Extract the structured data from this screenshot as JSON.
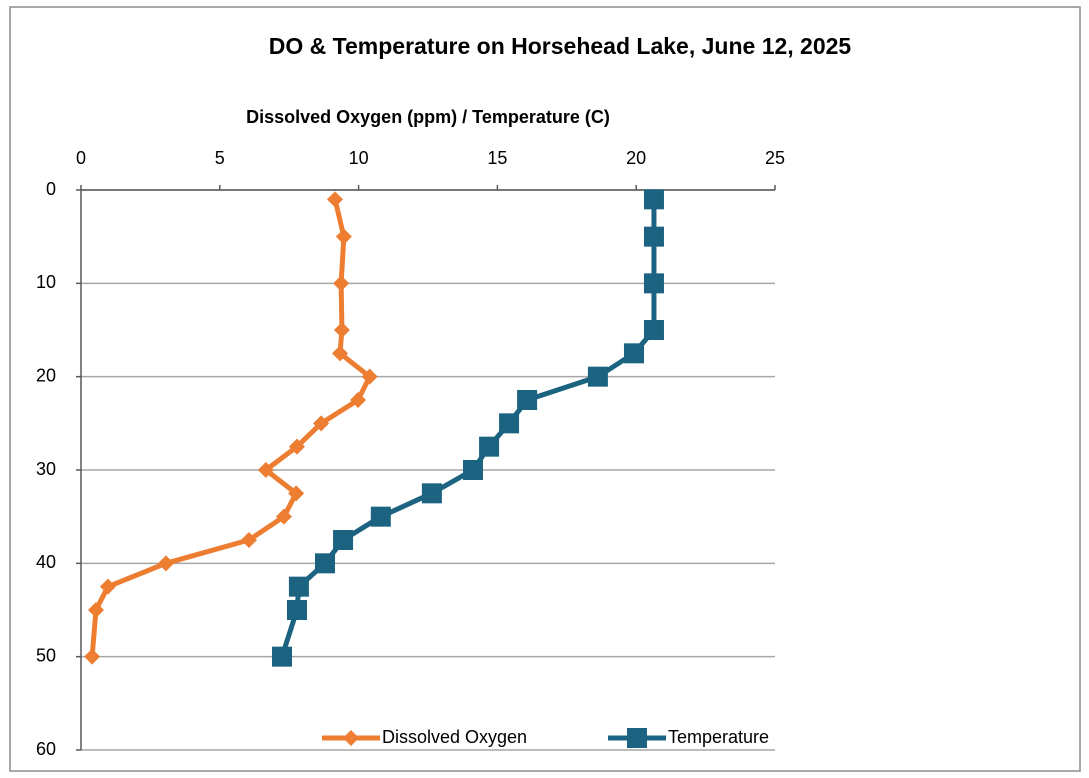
{
  "chart_data": {
    "type": "line",
    "title": "DO & Temperature on Horsehead Lake, June 12, 2025",
    "x_label": "Dissolved Oxygen (ppm) / Temperature (C)",
    "xlim": [
      0,
      25
    ],
    "xticks": [
      0,
      5,
      10,
      15,
      20,
      25
    ],
    "ylim": [
      0,
      60
    ],
    "yticks": [
      0,
      10,
      20,
      30,
      40,
      50,
      60
    ],
    "y_reversed": true,
    "x_axis_position": "top",
    "grid": "horizontal",
    "legend": "bottom",
    "series": [
      {
        "name": "Dissolved Oxygen",
        "color": "#ed7d31",
        "marker": "diamond",
        "x": [
          9.15,
          9.47,
          9.37,
          9.4,
          9.33,
          10.4,
          9.98,
          8.65,
          7.78,
          6.66,
          7.75,
          7.31,
          6.05,
          3.06,
          0.97,
          0.54,
          0.4
        ],
        "y": [
          1,
          5,
          10,
          15,
          17.5,
          20,
          22.5,
          25,
          27.5,
          30,
          32.5,
          35,
          37.5,
          40,
          42.5,
          45,
          50
        ]
      },
      {
        "name": "Temperature",
        "color": "#1b6381",
        "marker": "square",
        "x": [
          20.64,
          20.64,
          20.64,
          20.64,
          19.92,
          18.62,
          16.07,
          15.42,
          14.7,
          14.12,
          12.64,
          10.8,
          9.44,
          8.79,
          7.85,
          7.78,
          7.24
        ],
        "y": [
          1,
          5,
          10,
          15,
          17.5,
          20,
          22.5,
          25,
          27.5,
          30,
          32.5,
          35,
          37.5,
          40,
          42.5,
          45,
          50
        ]
      }
    ]
  }
}
